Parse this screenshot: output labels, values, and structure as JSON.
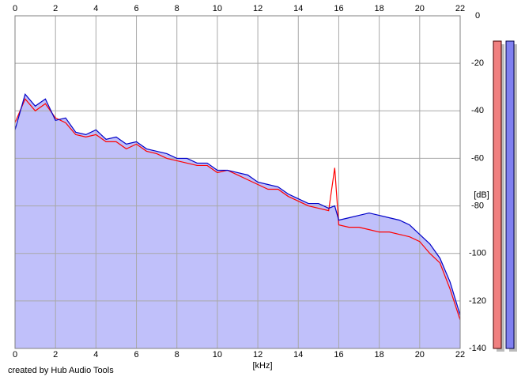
{
  "chart_data": {
    "type": "line",
    "x_label": "[kHz]",
    "y_label": "[dB]",
    "footer": "created by Hub Audio Tools",
    "x": [
      0,
      0.5,
      1,
      1.5,
      2,
      2.5,
      3,
      3.5,
      4,
      4.5,
      5,
      5.5,
      6,
      6.5,
      7,
      7.5,
      8,
      8.5,
      9,
      9.5,
      10,
      10.5,
      11,
      11.5,
      12,
      12.5,
      13,
      13.5,
      14,
      14.5,
      15,
      15.5,
      15.8,
      16,
      16.5,
      17,
      17.5,
      18,
      18.5,
      19,
      19.5,
      20,
      20.5,
      21,
      21.5,
      22
    ],
    "series": [
      {
        "color": "#ff0000",
        "values": [
          -45,
          -35,
          -40,
          -37,
          -43,
          -45,
          -50,
          -51,
          -50,
          -53,
          -53,
          -56,
          -54,
          -57,
          -58,
          -60,
          -61,
          -62,
          -63,
          -63,
          -66,
          -65,
          -67,
          -69,
          -71,
          -73,
          -73,
          -76,
          -78,
          -80,
          -81,
          -82,
          -64,
          -88,
          -89,
          -89,
          -90,
          -91,
          -91,
          -92,
          -93,
          -95,
          -100,
          -104,
          -115,
          -128
        ]
      },
      {
        "color": "#0000c8",
        "values": [
          -48,
          -33,
          -38,
          -35,
          -44,
          -43,
          -49,
          -50,
          -48,
          -52,
          -51,
          -54,
          -53,
          -56,
          -57,
          -58,
          -60,
          -60,
          -62,
          -62,
          -65,
          -65,
          -66,
          -67,
          -70,
          -71,
          -72,
          -75,
          -77,
          -79,
          -79,
          -81,
          -80,
          -86,
          -85,
          -84,
          -83,
          -84,
          -85,
          -86,
          -88,
          -92,
          -96,
          -102,
          -112,
          -126
        ]
      }
    ],
    "fill_color": "#c0c0fa",
    "xlim": [
      0,
      22
    ],
    "xticks": [
      0,
      2,
      4,
      6,
      8,
      10,
      12,
      14,
      16,
      18,
      20,
      22
    ],
    "ylim": [
      -140,
      0
    ],
    "yticks": [
      0,
      -20,
      -40,
      -60,
      -80,
      -100,
      -120,
      -140
    ],
    "grid": true
  }
}
